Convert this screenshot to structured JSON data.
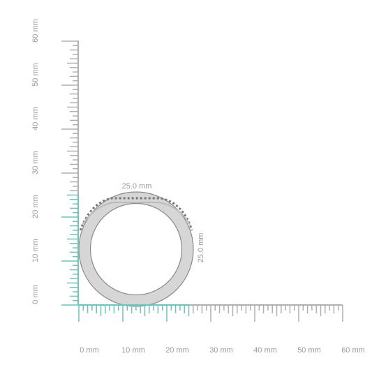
{
  "horizontal_ruler": {
    "labels": [
      "0 mm",
      "10 mm",
      "20 mm",
      "30 mm",
      "40 mm",
      "50 mm",
      "60 mm"
    ]
  },
  "vertical_ruler": {
    "labels": [
      "0 mm",
      "10 mm",
      "20 mm",
      "30 mm",
      "40 mm",
      "50 mm",
      "60 mm"
    ]
  },
  "dimensions": {
    "width": "25.0 mm",
    "height": "25.0 mm"
  }
}
